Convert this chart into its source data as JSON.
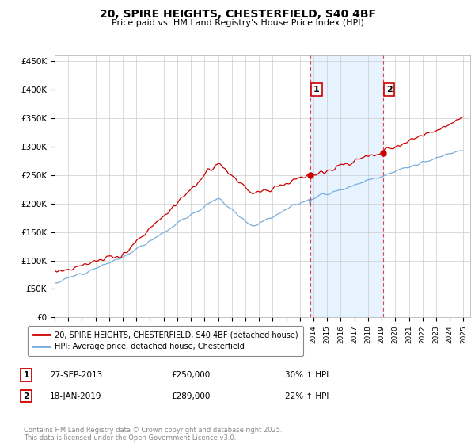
{
  "title": "20, SPIRE HEIGHTS, CHESTERFIELD, S40 4BF",
  "subtitle": "Price paid vs. HM Land Registry's House Price Index (HPI)",
  "legend_label_red": "20, SPIRE HEIGHTS, CHESTERFIELD, S40 4BF (detached house)",
  "legend_label_blue": "HPI: Average price, detached house, Chesterfield",
  "annotation1_date": "27-SEP-2013",
  "annotation1_price": "£250,000",
  "annotation1_hpi": "30% ↑ HPI",
  "annotation2_date": "18-JAN-2019",
  "annotation2_price": "£289,000",
  "annotation2_hpi": "22% ↑ HPI",
  "footer": "Contains HM Land Registry data © Crown copyright and database right 2025.\nThis data is licensed under the Open Government Licence v3.0.",
  "red_color": "#cc0000",
  "blue_color": "#7aaddc",
  "shading_color": "#ddeeff",
  "annotation_vline_color": "#dd4444",
  "ylim": [
    0,
    460000
  ],
  "yticks": [
    0,
    50000,
    100000,
    150000,
    200000,
    250000,
    300000,
    350000,
    400000,
    450000
  ],
  "start_year": 1995,
  "end_year": 2025
}
